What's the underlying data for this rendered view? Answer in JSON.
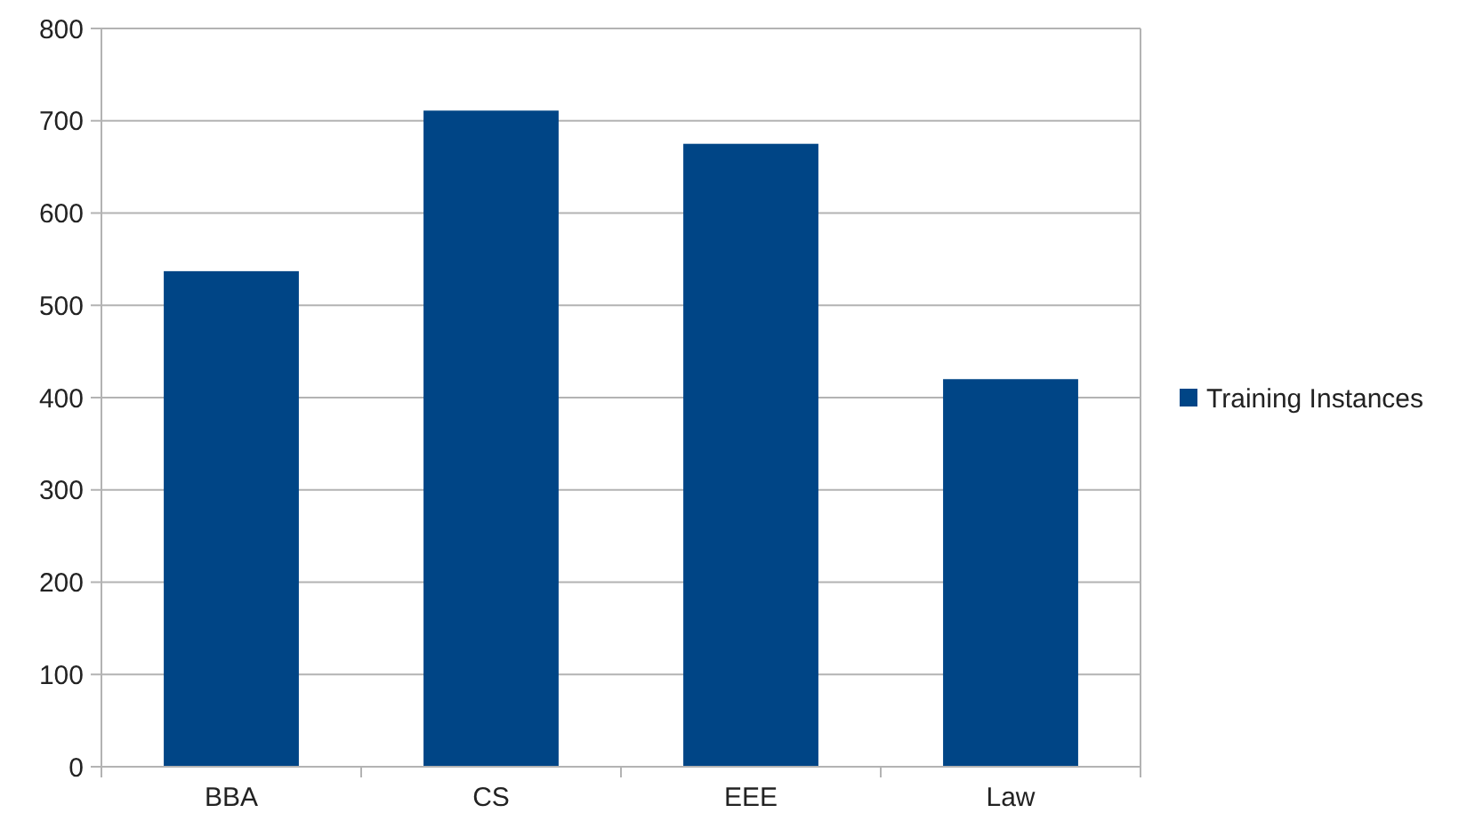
{
  "chart_data": {
    "type": "bar",
    "categories": [
      "BBA",
      "CS",
      "EEE",
      "Law"
    ],
    "series": [
      {
        "name": "Training Instances",
        "color": "#004586",
        "values": [
          537,
          711,
          675,
          420
        ]
      }
    ],
    "ylim": [
      0,
      800
    ],
    "yticks": [
      0,
      100,
      200,
      300,
      400,
      500,
      600,
      700,
      800
    ],
    "grid": "y",
    "legend": "right"
  }
}
